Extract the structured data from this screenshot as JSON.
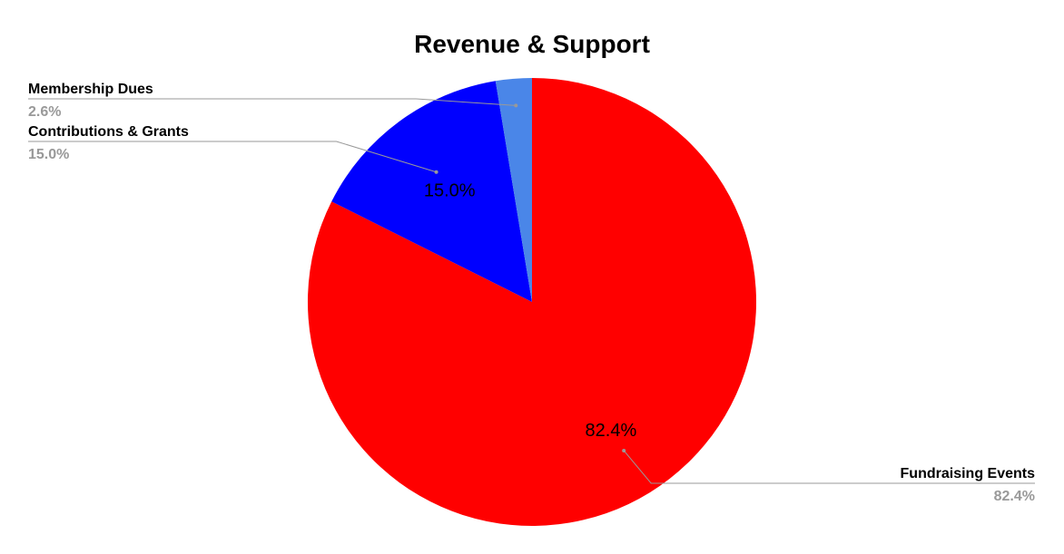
{
  "chart_data": {
    "type": "pie",
    "title": "Revenue & Support",
    "slices": [
      {
        "label": "Fundraising Events",
        "value": 82.4,
        "display": "82.4%",
        "color": "#ff0000"
      },
      {
        "label": "Contributions & Grants",
        "value": 15.0,
        "display": "15.0%",
        "color": "#0000ff"
      },
      {
        "label": "Membership Dues",
        "value": 2.6,
        "display": "2.6%",
        "color": "#4a86e8"
      }
    ],
    "legend_placement": "outside-labels-with-leader-lines",
    "leader_line_color": "#999999"
  }
}
